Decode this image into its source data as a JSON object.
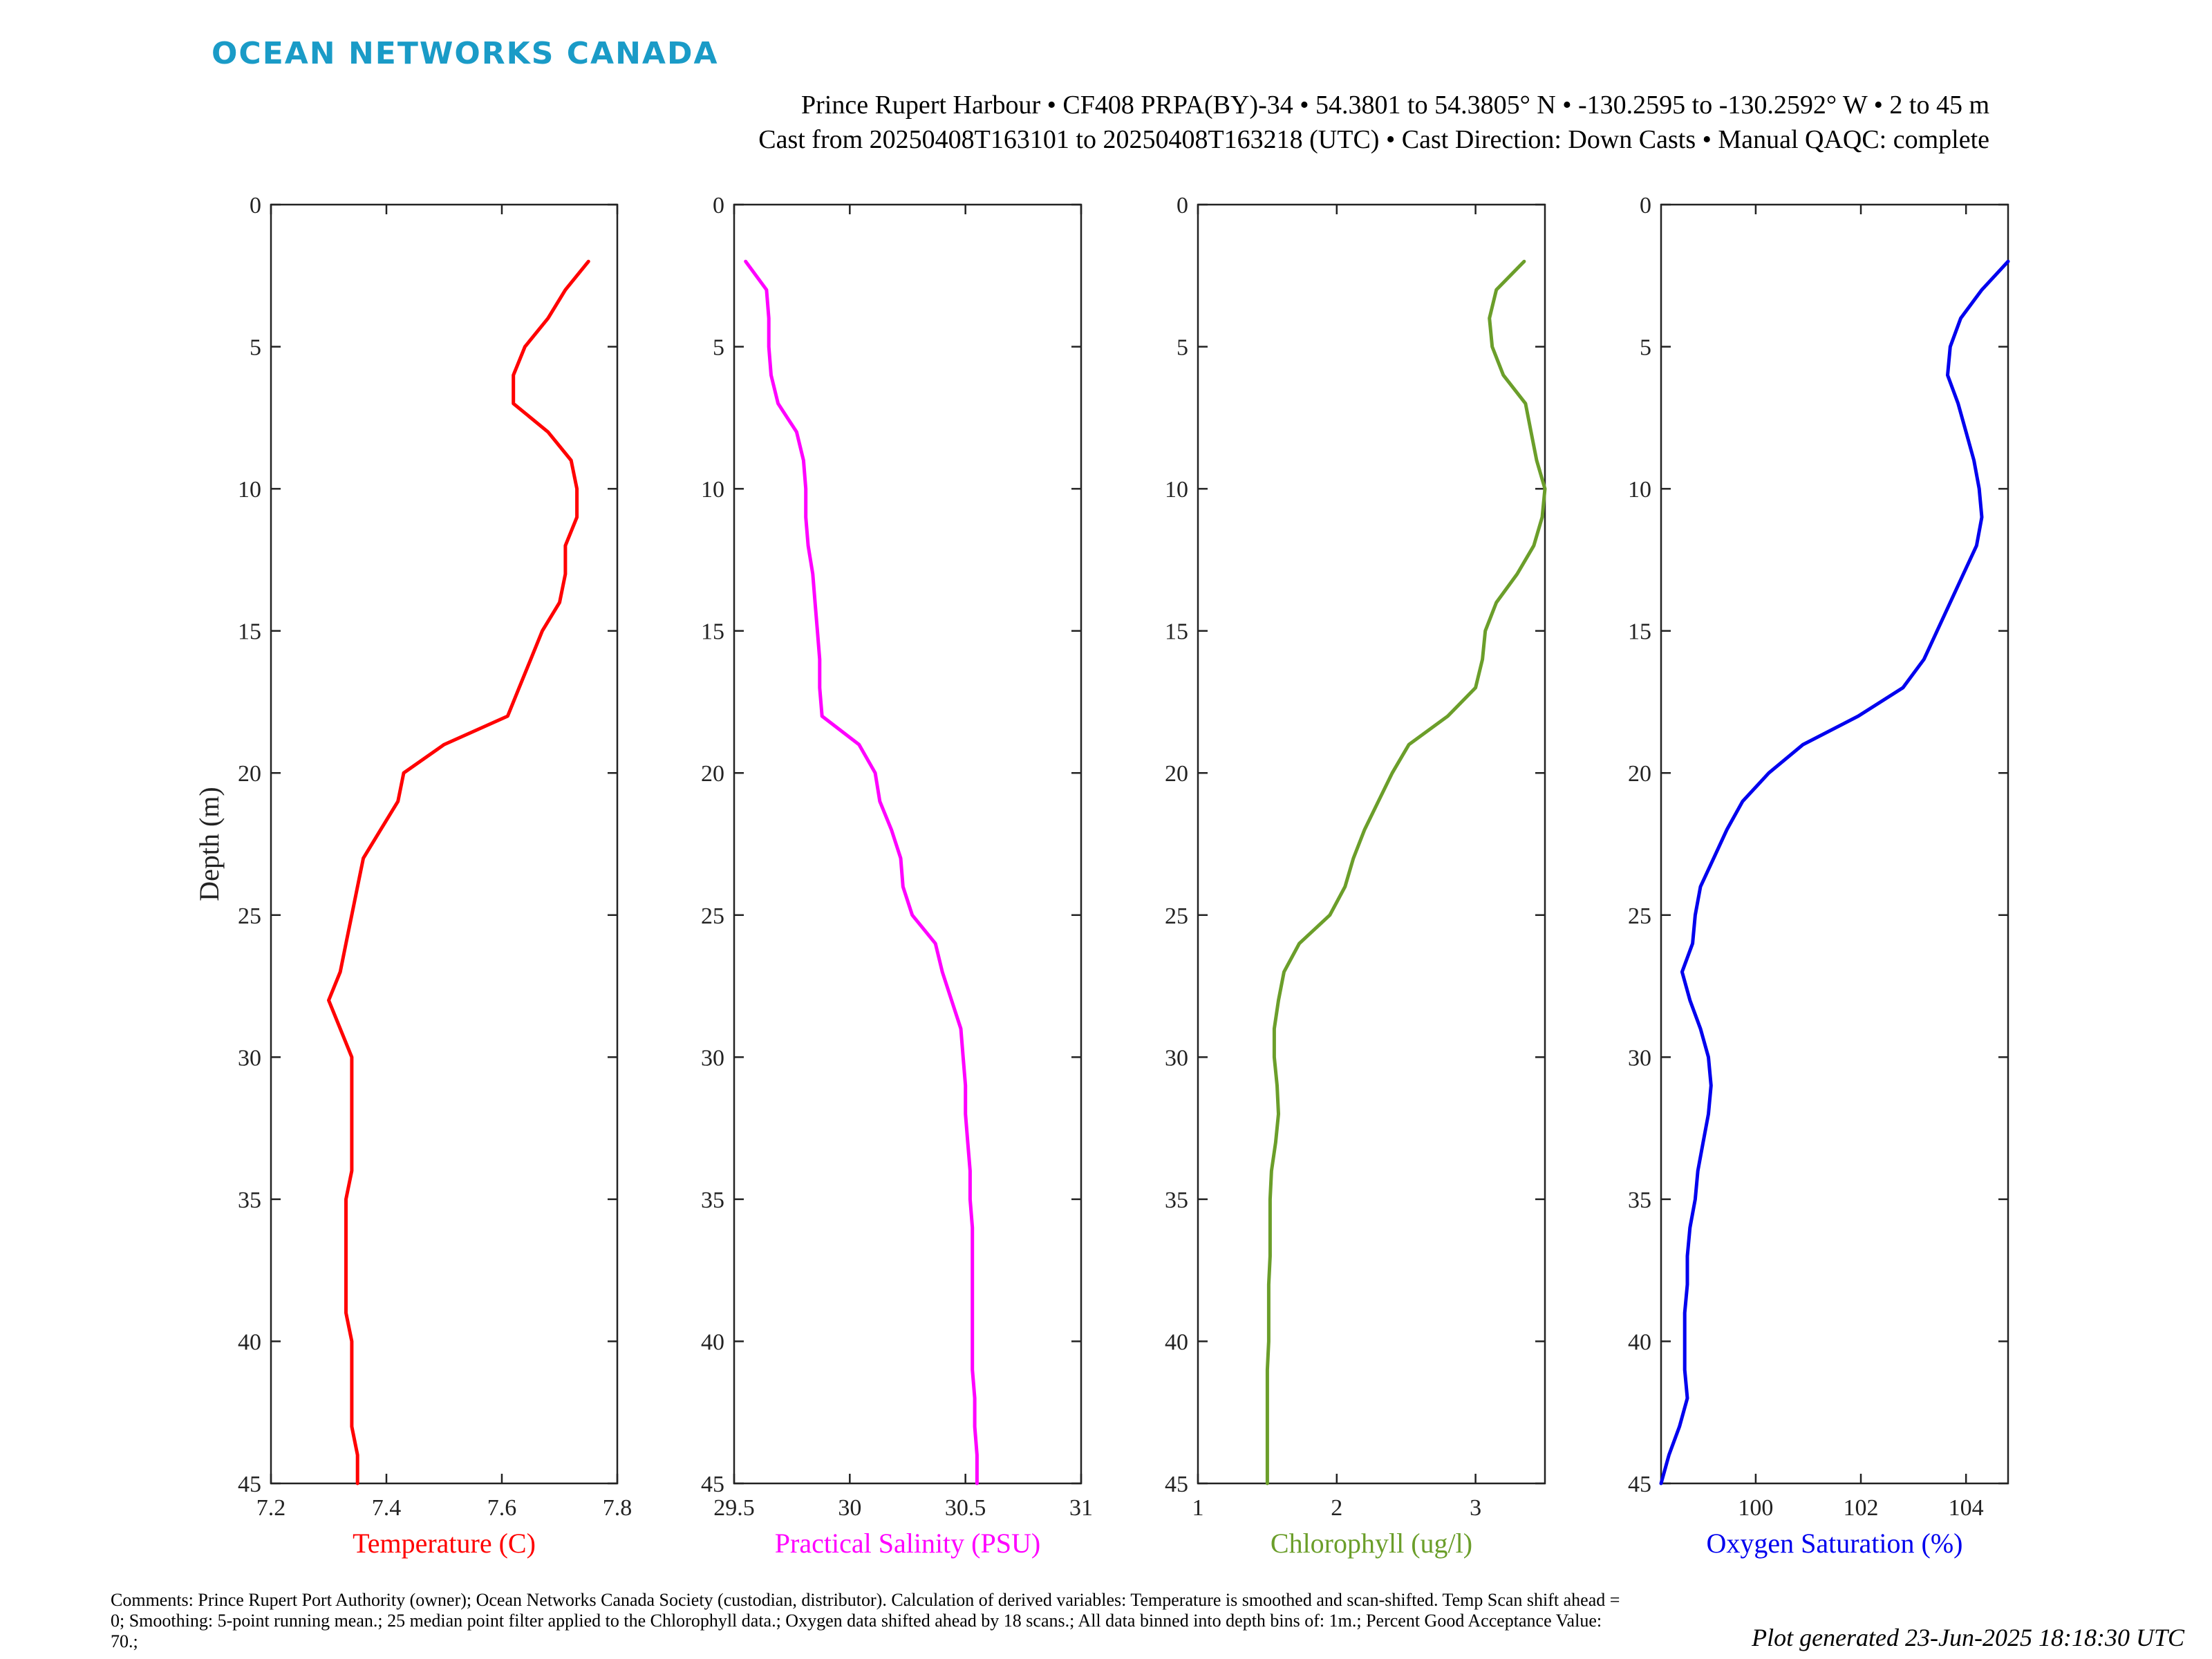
{
  "header": {
    "logo": "OCEAN NETWORKS CANADA",
    "line1": "Prince Rupert Harbour • CF408 PRPA(BY)-34 • 54.3801 to 54.3805° N • -130.2595 to -130.2592° W • 2 to 45 m",
    "line2": "Cast from 20250408T163101 to 20250408T163218 (UTC) • Cast Direction: Down Casts • Manual QAQC: complete"
  },
  "colors": {
    "logo": "#1a9bc7",
    "temperature": "#ff0000",
    "salinity": "#ff00ff",
    "chlorophyll": "#6b9e2a",
    "oxygen": "#0000ee"
  },
  "footer": {
    "comments": "Comments: Prince Rupert Port Authority (owner); Ocean Networks Canada Society (custodian, distributor). Calculation of derived variables: Temperature is smoothed and scan-shifted. Temp Scan shift ahead = 0; Smoothing: 5-point running mean.; 25 median point filter applied to the Chlorophyll data.; Oxygen data shifted ahead by 18 scans.; All data binned into depth bins of: 1m.; Percent Good Acceptance Value: 70.;",
    "generated": "Plot generated 23-Jun-2025 18:18:30 UTC"
  },
  "chart_data": [
    {
      "type": "line",
      "xlabel": "Temperature (C)",
      "ylabel": "Depth (m)",
      "xlim": [
        7.2,
        7.8
      ],
      "ylim": [
        0,
        45
      ],
      "y_reversed": true,
      "xticks": [
        "7.2",
        "7.4",
        "7.6",
        "7.8"
      ],
      "yticks": [
        "0",
        "5",
        "10",
        "15",
        "20",
        "25",
        "30",
        "35",
        "40",
        "45"
      ],
      "color": "#ff0000",
      "depth": [
        2,
        3,
        4,
        5,
        6,
        7,
        8,
        9,
        10,
        11,
        12,
        13,
        14,
        15,
        16,
        17,
        18,
        19,
        20,
        21,
        22,
        23,
        24,
        25,
        26,
        27,
        28,
        29,
        30,
        31,
        32,
        33,
        34,
        35,
        36,
        37,
        38,
        39,
        40,
        41,
        42,
        43,
        44,
        45
      ],
      "values": [
        7.75,
        7.71,
        7.68,
        7.64,
        7.62,
        7.62,
        7.68,
        7.72,
        7.73,
        7.73,
        7.71,
        7.71,
        7.7,
        7.67,
        7.65,
        7.63,
        7.61,
        7.5,
        7.43,
        7.42,
        7.39,
        7.36,
        7.35,
        7.34,
        7.33,
        7.32,
        7.3,
        7.32,
        7.34,
        7.34,
        7.34,
        7.34,
        7.34,
        7.33,
        7.33,
        7.33,
        7.33,
        7.33,
        7.34,
        7.34,
        7.34,
        7.34,
        7.35,
        7.35
      ]
    },
    {
      "type": "line",
      "xlabel": "Practical Salinity (PSU)",
      "xlim": [
        29.5,
        31
      ],
      "ylim": [
        0,
        45
      ],
      "y_reversed": true,
      "xticks": [
        "29.5",
        "30",
        "30.5",
        "31"
      ],
      "yticks": [
        "0",
        "5",
        "10",
        "15",
        "20",
        "25",
        "30",
        "35",
        "40",
        "45"
      ],
      "color": "#ff00ff",
      "depth": [
        2,
        3,
        4,
        5,
        6,
        7,
        8,
        9,
        10,
        11,
        12,
        13,
        14,
        15,
        16,
        17,
        18,
        19,
        20,
        21,
        22,
        23,
        24,
        25,
        26,
        27,
        28,
        29,
        30,
        31,
        32,
        33,
        34,
        35,
        36,
        37,
        38,
        39,
        40,
        41,
        42,
        43,
        44,
        45
      ],
      "values": [
        29.55,
        29.64,
        29.65,
        29.65,
        29.66,
        29.69,
        29.77,
        29.8,
        29.81,
        29.81,
        29.82,
        29.84,
        29.85,
        29.86,
        29.87,
        29.87,
        29.88,
        30.04,
        30.11,
        30.13,
        30.18,
        30.22,
        30.23,
        30.27,
        30.37,
        30.4,
        30.44,
        30.48,
        30.49,
        30.5,
        30.5,
        30.51,
        30.52,
        30.52,
        30.53,
        30.53,
        30.53,
        30.53,
        30.53,
        30.53,
        30.54,
        30.54,
        30.55,
        30.55
      ]
    },
    {
      "type": "line",
      "xlabel": "Chlorophyll (ug/l)",
      "xlim": [
        1,
        3.5
      ],
      "ylim": [
        0,
        45
      ],
      "y_reversed": true,
      "xticks": [
        "1",
        "2",
        "3"
      ],
      "yticks": [
        "0",
        "5",
        "10",
        "15",
        "20",
        "25",
        "30",
        "35",
        "40",
        "45"
      ],
      "color": "#6b9e2a",
      "depth": [
        2,
        3,
        4,
        5,
        6,
        7,
        8,
        9,
        10,
        11,
        12,
        13,
        14,
        15,
        16,
        17,
        18,
        19,
        20,
        21,
        22,
        23,
        24,
        25,
        26,
        27,
        28,
        29,
        30,
        31,
        32,
        33,
        34,
        35,
        36,
        37,
        38,
        39,
        40,
        41,
        42,
        43,
        44,
        45
      ],
      "values": [
        3.35,
        3.15,
        3.1,
        3.12,
        3.2,
        3.36,
        3.4,
        3.44,
        3.5,
        3.48,
        3.42,
        3.3,
        3.15,
        3.07,
        3.05,
        3.0,
        2.8,
        2.52,
        2.4,
        2.3,
        2.2,
        2.12,
        2.06,
        1.95,
        1.73,
        1.62,
        1.58,
        1.55,
        1.55,
        1.57,
        1.58,
        1.56,
        1.53,
        1.52,
        1.52,
        1.52,
        1.51,
        1.51,
        1.51,
        1.5,
        1.5,
        1.5,
        1.5,
        1.5
      ]
    },
    {
      "type": "line",
      "xlabel": "Oxygen Saturation (%)",
      "xlim": [
        98.2,
        104.8
      ],
      "ylim": [
        0,
        45
      ],
      "y_reversed": true,
      "xticks": [
        "100",
        "102",
        "104"
      ],
      "yticks": [
        "0",
        "5",
        "10",
        "15",
        "20",
        "25",
        "30",
        "35",
        "40",
        "45"
      ],
      "color": "#0000ee",
      "depth": [
        2,
        3,
        4,
        5,
        6,
        7,
        8,
        9,
        10,
        11,
        12,
        13,
        14,
        15,
        16,
        17,
        18,
        19,
        20,
        21,
        22,
        23,
        24,
        25,
        26,
        27,
        28,
        29,
        30,
        31,
        32,
        33,
        34,
        35,
        36,
        37,
        38,
        39,
        40,
        41,
        42,
        43,
        44,
        45
      ],
      "values": [
        104.8,
        104.3,
        103.9,
        103.7,
        103.65,
        103.85,
        104.0,
        104.15,
        104.25,
        104.3,
        104.2,
        103.95,
        103.7,
        103.45,
        103.2,
        102.8,
        101.95,
        100.9,
        100.25,
        99.75,
        99.45,
        99.2,
        98.95,
        98.85,
        98.8,
        98.6,
        98.75,
        98.95,
        99.1,
        99.15,
        99.1,
        99.0,
        98.9,
        98.85,
        98.75,
        98.7,
        98.7,
        98.65,
        98.65,
        98.65,
        98.7,
        98.55,
        98.35,
        98.2
      ]
    }
  ]
}
